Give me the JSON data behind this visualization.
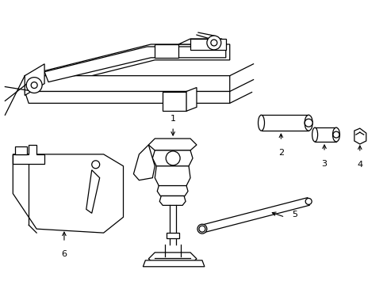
{
  "background_color": "#ffffff",
  "line_color": "#000000",
  "label_color": "#000000",
  "fig_width": 4.89,
  "fig_height": 3.6,
  "dpi": 100,
  "label_fontsize": 8
}
